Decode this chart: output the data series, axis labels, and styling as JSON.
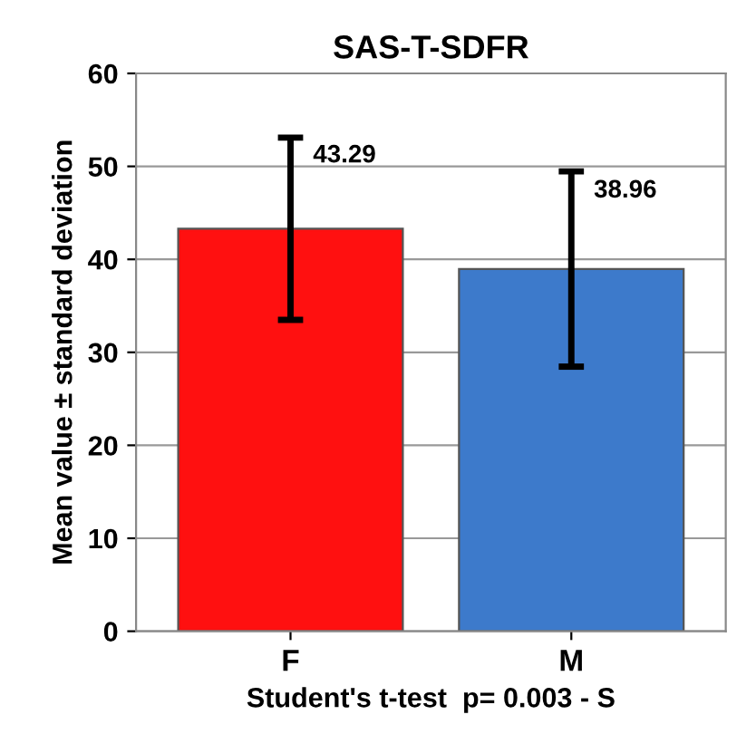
{
  "chart_data": {
    "type": "bar",
    "title": "SAS-T-SDFR",
    "categories": [
      "F",
      "M"
    ],
    "values": [
      43.29,
      38.96
    ],
    "colors": [
      "#ff1010",
      "#3d7acb"
    ],
    "errors": [
      9.8,
      10.5
    ],
    "data_labels": true,
    "xlabel": "Student's t-test  p= 0.003 - S",
    "ylabel": "Mean value ± standard deviation",
    "ylim": [
      0,
      60
    ],
    "yticks": [
      0,
      10,
      20,
      30,
      40,
      50,
      60
    ],
    "grid": "y"
  }
}
